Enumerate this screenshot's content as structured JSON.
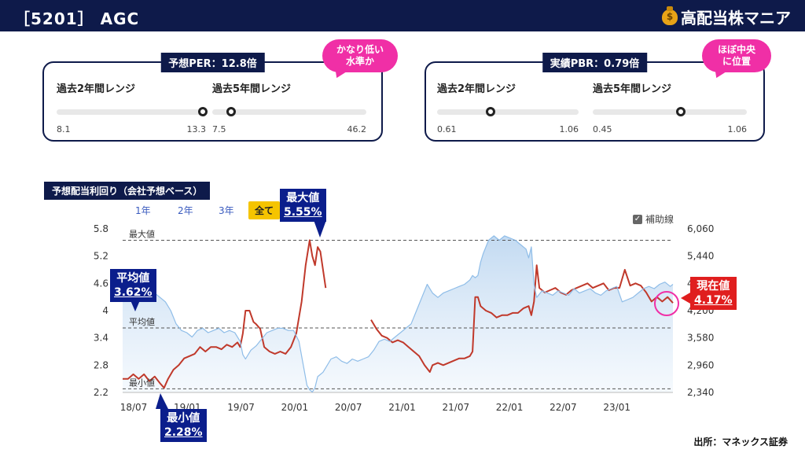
{
  "header": {
    "title": "［5201］ AGC",
    "brand": "高配当株マニア",
    "brand_icon": "money-bag-icon"
  },
  "per_panel": {
    "title": "予想PER：12.8倍",
    "range2": {
      "label": "過去2年間レンジ",
      "min": "8.1",
      "max": "13.3",
      "position": 0.98
    },
    "range5": {
      "label": "過去5年間レンジ",
      "min": "7.5",
      "max": "46.2",
      "position": 0.12
    },
    "bubble": "かなり低い\n水準か"
  },
  "pbr_panel": {
    "title": "実績PBR：0.79倍",
    "range2": {
      "label": "過去2年間レンジ",
      "min": "0.61",
      "max": "1.06",
      "position": 0.38
    },
    "range5": {
      "label": "過去5年間レンジ",
      "min": "0.45",
      "max": "1.06",
      "position": 0.57
    },
    "bubble": "ほぼ中央\nに位置"
  },
  "chart_section": {
    "title": "予想配当利回り（会社予想ベース）",
    "periods": [
      "1年",
      "2年",
      "3年",
      "全て"
    ],
    "active_period": "全て",
    "helper_label": "補助線",
    "helper_checked": true
  },
  "chart_data": {
    "type": "line",
    "x_ticks": [
      "18/07",
      "19/01",
      "19/07",
      "20/01",
      "20/07",
      "21/01",
      "21/07",
      "22/01",
      "22/07",
      "23/01"
    ],
    "y_left_ticks": [
      "2.2",
      "2.8",
      "3.4",
      "4",
      "4.6",
      "5.2",
      "5.8"
    ],
    "y_left_range": [
      2.2,
      5.8
    ],
    "y_right_ticks": [
      "2,340",
      "2,960",
      "3,580",
      "4,200",
      "4,820",
      "5,440",
      "6,060"
    ],
    "y_right_range": [
      2340,
      6060
    ],
    "reference_lines": [
      {
        "label": "最大値",
        "value": 5.55
      },
      {
        "label": "平均値",
        "value": 3.62
      },
      {
        "label": "最小値",
        "value": 2.28
      }
    ],
    "series": [
      {
        "color": "#c0392b",
        "axis": "left",
        "segments": [
          [
            [
              0,
              2.5
            ],
            [
              4,
              2.5
            ],
            [
              8,
              2.6
            ],
            [
              12,
              2.5
            ],
            [
              16,
              2.6
            ],
            [
              20,
              2.45
            ],
            [
              24,
              2.55
            ],
            [
              28,
              2.4
            ],
            [
              31,
              2.3
            ],
            [
              34,
              2.5
            ],
            [
              38,
              2.7
            ],
            [
              42,
              2.8
            ],
            [
              46,
              2.95
            ],
            [
              50,
              3.0
            ],
            [
              54,
              3.05
            ],
            [
              58,
              3.2
            ],
            [
              62,
              3.1
            ],
            [
              66,
              3.2
            ],
            [
              70,
              3.2
            ],
            [
              74,
              3.15
            ],
            [
              78,
              3.25
            ],
            [
              82,
              3.2
            ],
            [
              86,
              3.3
            ],
            [
              88,
              3.2
            ],
            [
              90,
              3.5
            ],
            [
              92,
              4.0
            ],
            [
              95,
              4.0
            ],
            [
              98,
              3.75
            ],
            [
              100,
              3.7
            ],
            [
              103,
              3.6
            ],
            [
              106,
              3.2
            ],
            [
              110,
              3.1
            ],
            [
              114,
              3.05
            ],
            [
              118,
              3.1
            ],
            [
              122,
              3.05
            ],
            [
              126,
              3.2
            ],
            [
              130,
              3.5
            ],
            [
              134,
              4.2
            ],
            [
              137,
              5.0
            ],
            [
              140,
              5.55
            ],
            [
              142,
              5.2
            ],
            [
              144,
              5.0
            ],
            [
              146,
              5.4
            ],
            [
              148,
              5.3
            ],
            [
              150,
              4.9
            ],
            [
              152,
              4.5
            ]
          ],
          [
            [
              186,
              3.8
            ],
            [
              190,
              3.6
            ],
            [
              194,
              3.45
            ],
            [
              198,
              3.4
            ],
            [
              202,
              3.3
            ],
            [
              206,
              3.35
            ],
            [
              210,
              3.3
            ],
            [
              214,
              3.2
            ],
            [
              218,
              3.1
            ],
            [
              222,
              3.0
            ],
            [
              226,
              2.8
            ],
            [
              230,
              2.65
            ],
            [
              232,
              2.8
            ],
            [
              236,
              2.85
            ],
            [
              240,
              2.8
            ],
            [
              244,
              2.85
            ],
            [
              248,
              2.9
            ],
            [
              252,
              2.95
            ],
            [
              256,
              2.95
            ],
            [
              260,
              3.0
            ],
            [
              262,
              3.1
            ],
            [
              264,
              4.3
            ],
            [
              266,
              4.3
            ],
            [
              268,
              4.1
            ],
            [
              272,
              4.0
            ],
            [
              276,
              3.95
            ],
            [
              280,
              3.85
            ],
            [
              284,
              3.9
            ],
            [
              288,
              3.9
            ],
            [
              292,
              3.95
            ],
            [
              296,
              3.95
            ],
            [
              300,
              4.05
            ],
            [
              304,
              4.1
            ],
            [
              306,
              3.9
            ],
            [
              308,
              4.2
            ],
            [
              310,
              5.0
            ],
            [
              312,
              4.5
            ],
            [
              316,
              4.4
            ],
            [
              320,
              4.45
            ],
            [
              324,
              4.5
            ],
            [
              328,
              4.4
            ],
            [
              332,
              4.35
            ],
            [
              336,
              4.45
            ],
            [
              340,
              4.5
            ],
            [
              344,
              4.55
            ],
            [
              348,
              4.6
            ],
            [
              352,
              4.5
            ],
            [
              356,
              4.55
            ],
            [
              360,
              4.6
            ],
            [
              364,
              4.45
            ],
            [
              368,
              4.5
            ],
            [
              372,
              4.5
            ],
            [
              376,
              4.9
            ],
            [
              380,
              4.55
            ],
            [
              384,
              4.6
            ],
            [
              388,
              4.55
            ],
            [
              392,
              4.4
            ],
            [
              396,
              4.2
            ],
            [
              400,
              4.3
            ],
            [
              404,
              4.2
            ],
            [
              408,
              4.3
            ],
            [
              412,
              4.17
            ]
          ]
        ]
      },
      {
        "color": "#8fbde8",
        "axis": "right",
        "segments": [
          [
            [
              0,
              4650
            ],
            [
              4,
              4750
            ],
            [
              8,
              4800
            ],
            [
              12,
              4900
            ],
            [
              16,
              4700
            ],
            [
              20,
              4780
            ],
            [
              24,
              4600
            ],
            [
              28,
              4500
            ],
            [
              32,
              4400
            ],
            [
              36,
              4200
            ],
            [
              40,
              3900
            ],
            [
              44,
              3750
            ],
            [
              48,
              3700
            ],
            [
              52,
              3600
            ],
            [
              56,
              3750
            ],
            [
              60,
              3800
            ],
            [
              64,
              3700
            ],
            [
              68,
              3750
            ],
            [
              72,
              3800
            ],
            [
              76,
              3700
            ],
            [
              80,
              3750
            ],
            [
              84,
              3700
            ],
            [
              88,
              3500
            ],
            [
              90,
              3200
            ],
            [
              92,
              3100
            ],
            [
              96,
              3300
            ],
            [
              100,
              3400
            ],
            [
              104,
              3550
            ],
            [
              108,
              3700
            ],
            [
              112,
              3750
            ],
            [
              116,
              3800
            ],
            [
              120,
              3800
            ],
            [
              124,
              3750
            ],
            [
              128,
              3750
            ],
            [
              132,
              3500
            ],
            [
              135,
              3000
            ],
            [
              138,
              2500
            ],
            [
              140,
              2400
            ],
            [
              142,
              2350
            ],
            [
              144,
              2450
            ],
            [
              146,
              2700
            ],
            [
              148,
              2750
            ],
            [
              150,
              2800
            ],
            [
              152,
              2900
            ],
            [
              156,
              3100
            ],
            [
              160,
              3150
            ],
            [
              164,
              3050
            ],
            [
              168,
              3000
            ],
            [
              172,
              3100
            ],
            [
              176,
              3050
            ],
            [
              180,
              3100
            ],
            [
              184,
              3150
            ],
            [
              188,
              3300
            ],
            [
              192,
              3500
            ],
            [
              196,
              3550
            ],
            [
              200,
              3500
            ],
            [
              204,
              3600
            ],
            [
              208,
              3700
            ],
            [
              212,
              3800
            ],
            [
              216,
              3900
            ],
            [
              220,
              4200
            ],
            [
              224,
              4500
            ],
            [
              228,
              4800
            ],
            [
              232,
              4600
            ],
            [
              236,
              4500
            ],
            [
              240,
              4600
            ],
            [
              244,
              4650
            ],
            [
              248,
              4700
            ],
            [
              252,
              4750
            ],
            [
              256,
              4800
            ],
            [
              260,
              4900
            ],
            [
              262,
              5000
            ],
            [
              264,
              4950
            ],
            [
              266,
              5000
            ],
            [
              268,
              5300
            ],
            [
              270,
              5500
            ],
            [
              274,
              5800
            ],
            [
              278,
              5900
            ],
            [
              282,
              5800
            ],
            [
              286,
              5900
            ],
            [
              290,
              5850
            ],
            [
              294,
              5800
            ],
            [
              298,
              5700
            ],
            [
              302,
              5600
            ],
            [
              304,
              5400
            ],
            [
              306,
              5650
            ],
            [
              308,
              4800
            ],
            [
              310,
              4500
            ],
            [
              314,
              4650
            ],
            [
              318,
              4600
            ],
            [
              322,
              4550
            ],
            [
              326,
              4650
            ],
            [
              330,
              4600
            ],
            [
              334,
              4550
            ],
            [
              338,
              4700
            ],
            [
              342,
              4600
            ],
            [
              346,
              4650
            ],
            [
              350,
              4700
            ],
            [
              354,
              4600
            ],
            [
              358,
              4550
            ],
            [
              362,
              4650
            ],
            [
              366,
              4700
            ],
            [
              370,
              4750
            ],
            [
              374,
              4400
            ],
            [
              378,
              4450
            ],
            [
              382,
              4500
            ],
            [
              386,
              4600
            ],
            [
              390,
              4700
            ],
            [
              394,
              4750
            ],
            [
              398,
              4700
            ],
            [
              402,
              4800
            ],
            [
              406,
              4850
            ],
            [
              410,
              4750
            ],
            [
              412,
              4800
            ]
          ]
        ]
      }
    ]
  },
  "callouts": {
    "max": {
      "label": "最大値",
      "value": "5.55%"
    },
    "avg": {
      "label": "平均値",
      "value": "3.62%"
    },
    "min": {
      "label": "最小値",
      "value": "2.28%"
    },
    "now": {
      "label": "現在値",
      "value": "4.17%"
    }
  },
  "source": "出所：マネックス証券"
}
